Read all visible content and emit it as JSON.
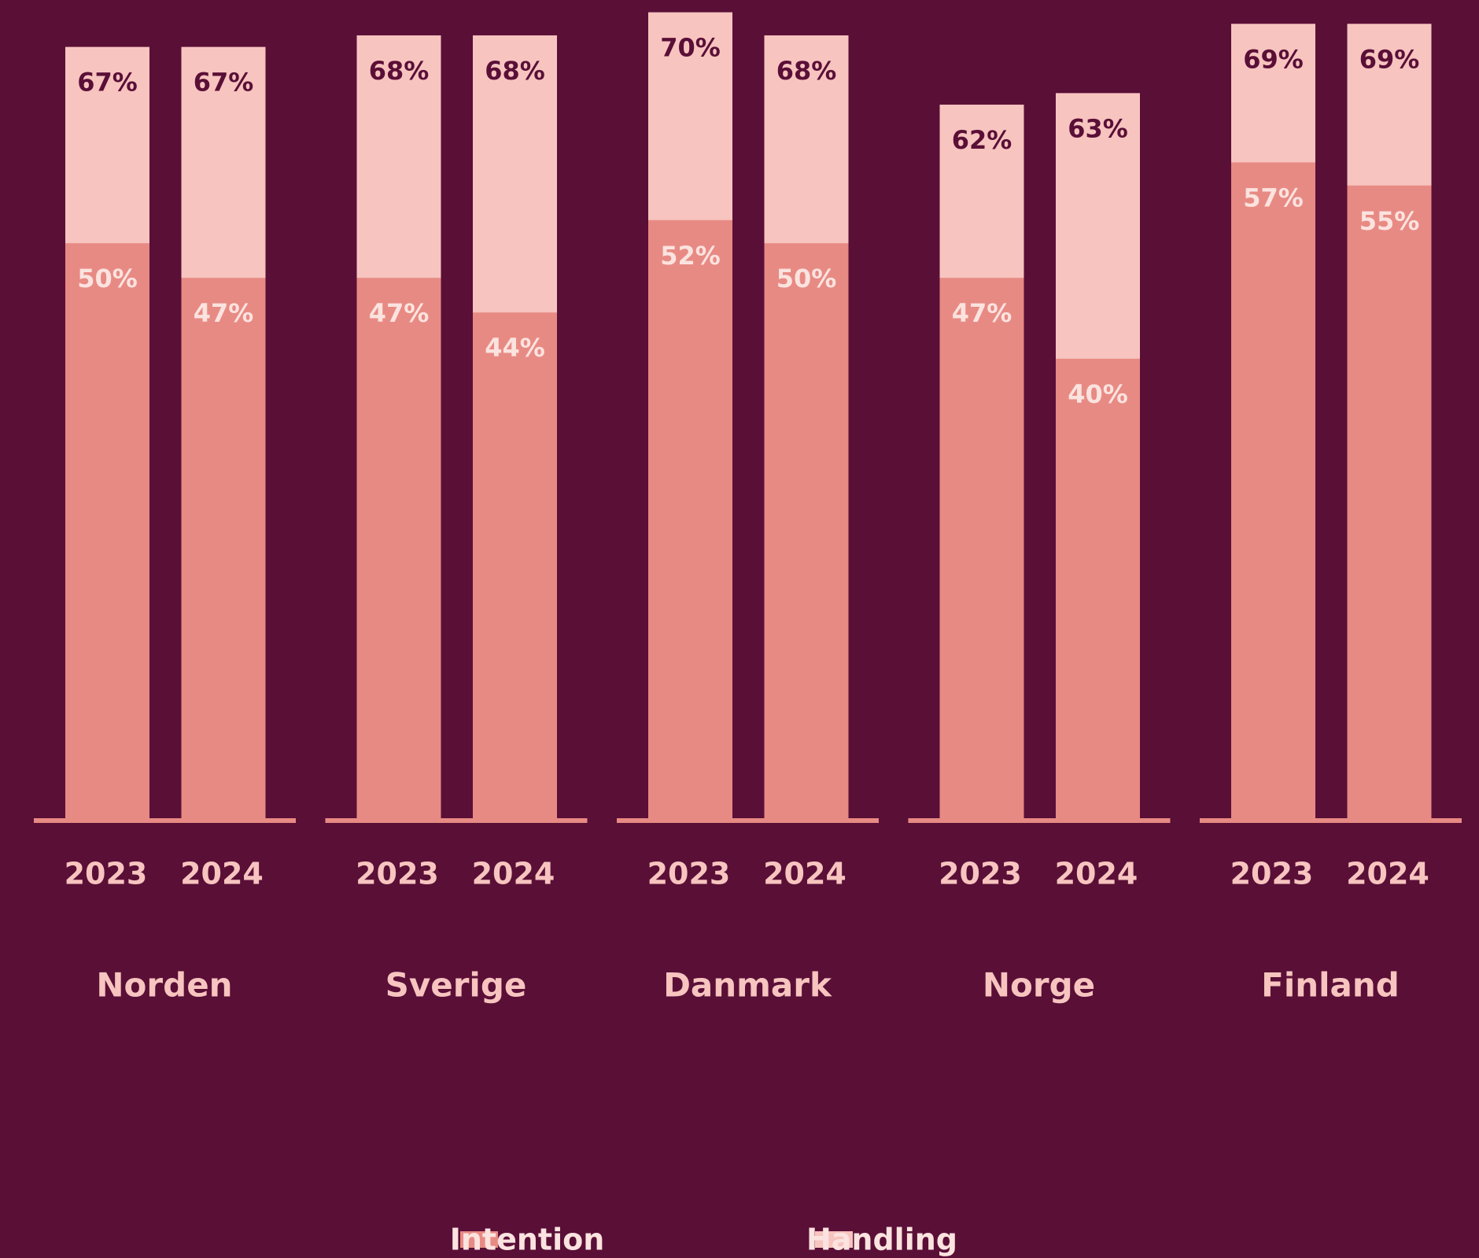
{
  "chart_data": {
    "type": "bar",
    "groups": [
      "Norden",
      "Sverige",
      "Danmark",
      "Norge",
      "Finland"
    ],
    "categories": [
      "2023",
      "2024",
      "2023",
      "2024",
      "2023",
      "2024",
      "2023",
      "2024",
      "2023",
      "2024"
    ],
    "series": [
      {
        "name": "Handling",
        "color": "#f7c4bf",
        "values": [
          67,
          67,
          68,
          68,
          70,
          68,
          62,
          63,
          69,
          69
        ],
        "value_labels": [
          "67%",
          "67%",
          "68%",
          "68%",
          "70%",
          "68%",
          "62%",
          "63%",
          "69%",
          "69%"
        ]
      },
      {
        "name": "Intention",
        "color": "#e88a84",
        "values": [
          50,
          47,
          47,
          44,
          52,
          50,
          47,
          40,
          57,
          55
        ],
        "value_labels": [
          "50%",
          "47%",
          "47%",
          "44%",
          "52%",
          "50%",
          "47%",
          "40%",
          "57%",
          "55%"
        ]
      }
    ],
    "ylim": [
      0,
      70
    ],
    "overlap": true
  }
}
